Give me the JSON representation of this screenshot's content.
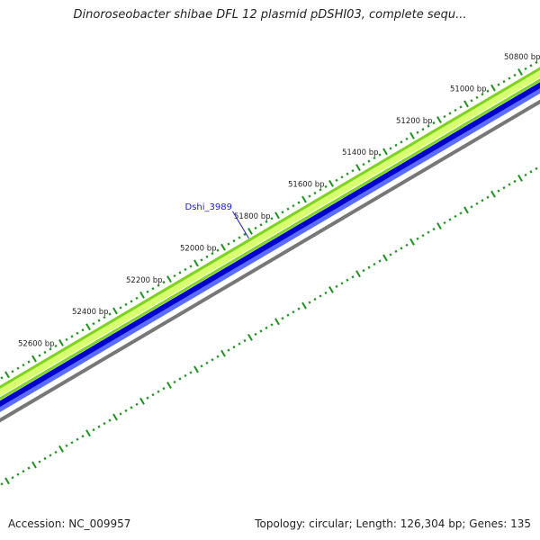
{
  "title": "Dinoroseobacter shibae DFL 12 plasmid pDSHI03, complete sequ...",
  "footer": {
    "accession_label": "Accession:",
    "accession": "NC_009957",
    "topology_label": "Topology:",
    "topology": "circular",
    "length_label": "Length:",
    "length": "126,304 bp",
    "genes_label": "Genes:",
    "genes": "135"
  },
  "ticks": [
    {
      "label": "50800 bp",
      "bp": 50800
    },
    {
      "label": "51000 bp",
      "bp": 51000
    },
    {
      "label": "51200 bp",
      "bp": 51200
    },
    {
      "label": "51400 bp",
      "bp": 51400
    },
    {
      "label": "51600 bp",
      "bp": 51600
    },
    {
      "label": "51800 bp",
      "bp": 51800
    },
    {
      "label": "52000 bp",
      "bp": 52000
    },
    {
      "label": "52200 bp",
      "bp": 52200
    },
    {
      "label": "52400 bp",
      "bp": 52400
    },
    {
      "label": "52600 bp",
      "bp": 52600
    }
  ],
  "gene_label": {
    "name": "Dshi_3989",
    "bp": 51805
  },
  "colors": {
    "outer_track": "#7ed320",
    "outer_track_light": "#d8ff70",
    "inner_track": "#0000cc",
    "inner_track_light": "#5c6cff",
    "backbone": "#777777",
    "tick_marks": "#1f8f1f",
    "gene_label": "#1a1acc"
  }
}
